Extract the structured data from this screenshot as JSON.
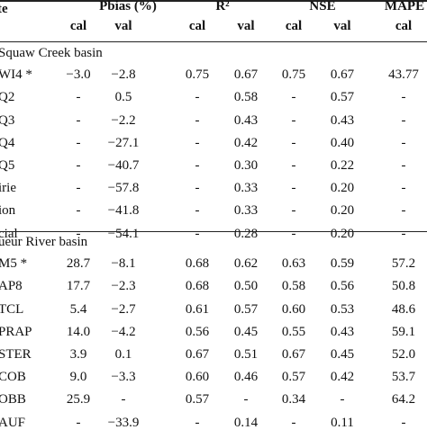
{
  "header": {
    "site": "te",
    "pbias": "Pbias (%)",
    "r2": "R²",
    "nse": "NSE",
    "mape": "MAPE",
    "subcols": [
      "cal",
      "val",
      "cal",
      "val",
      "cal",
      "val",
      "cal"
    ]
  },
  "sections": [
    {
      "title": "Squaw Creek basin",
      "rows": [
        {
          "site": "WI4 *",
          "values": [
            "−3.0",
            "−2.8",
            "0.75",
            "0.67",
            "0.75",
            "0.67",
            "43.77"
          ]
        },
        {
          "site": "Q2",
          "values": [
            "-",
            "0.5",
            "-",
            "0.58",
            "-",
            "0.57",
            "-"
          ]
        },
        {
          "site": "Q3",
          "values": [
            "-",
            "−2.2",
            "-",
            "0.43",
            "-",
            "0.43",
            "-"
          ]
        },
        {
          "site": "Q4",
          "values": [
            "-",
            "−27.1",
            "-",
            "0.42",
            "-",
            "0.40",
            "-"
          ]
        },
        {
          "site": "Q5",
          "values": [
            "-",
            "−40.7",
            "-",
            "0.30",
            "-",
            "0.22",
            "-"
          ]
        },
        {
          "site": "irie",
          "values": [
            "-",
            "−57.8",
            "-",
            "0.33",
            "-",
            "0.20",
            "-"
          ]
        },
        {
          "site": "ion",
          "values": [
            "-",
            "−41.8",
            "-",
            "0.33",
            "-",
            "0.20",
            "-"
          ]
        },
        {
          "site": "cial",
          "values": [
            "-",
            "−54.1",
            "-",
            "0.28",
            "-",
            "0.20",
            "-"
          ]
        }
      ]
    },
    {
      "title": "ueur River basin",
      "rows": [
        {
          "site": "M5 *",
          "values": [
            "28.7",
            "−8.1",
            "0.68",
            "0.62",
            "0.63",
            "0.59",
            "57.2"
          ]
        },
        {
          "site": "AP8",
          "values": [
            "17.7",
            "−2.3",
            "0.68",
            "0.50",
            "0.58",
            "0.56",
            "50.8"
          ]
        },
        {
          "site": "TCL",
          "values": [
            "5.4",
            "−2.7",
            "0.61",
            "0.57",
            "0.60",
            "0.53",
            "48.6"
          ]
        },
        {
          "site": "PRAP",
          "values": [
            "14.0",
            "−4.2",
            "0.56",
            "0.45",
            "0.55",
            "0.43",
            "59.1"
          ]
        },
        {
          "site": "STER",
          "values": [
            "3.9",
            "0.1",
            "0.67",
            "0.51",
            "0.67",
            "0.45",
            "52.0"
          ]
        },
        {
          "site": "COB",
          "values": [
            "9.0",
            "−3.3",
            "0.60",
            "0.46",
            "0.57",
            "0.42",
            "53.7"
          ]
        },
        {
          "site": "OBB",
          "values": [
            "25.9",
            "-",
            "0.57",
            "-",
            "0.34",
            "-",
            "64.2"
          ]
        },
        {
          "site": "AUF",
          "values": [
            "-",
            "−33.9",
            "-",
            "0.14",
            "-",
            "0.11",
            "-"
          ]
        }
      ]
    }
  ]
}
